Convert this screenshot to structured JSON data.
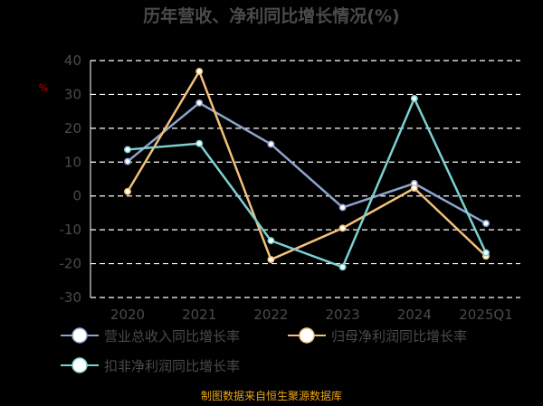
{
  "chart_data": {
    "type": "line",
    "title": "历年营收、净利同比增长情况(%)",
    "ylabel": "%",
    "categories": [
      "2020",
      "2021",
      "2022",
      "2023",
      "2024",
      "2025Q1"
    ],
    "ylim": [
      -30,
      40
    ],
    "yticks": [
      -30,
      -20,
      -10,
      0,
      10,
      20,
      30,
      40
    ],
    "grid": true,
    "legend_position": "bottom",
    "series": [
      {
        "name": "营业总收入同比增长率",
        "color": "#8fa3cf",
        "values": [
          10.2,
          27.5,
          15.3,
          -3.4,
          3.7,
          -8.1
        ]
      },
      {
        "name": "归母净利润同比增长率",
        "color": "#f4c07a",
        "values": [
          1.3,
          36.8,
          -18.8,
          -9.5,
          2.3,
          -17.8
        ]
      },
      {
        "name": "扣非净利润同比增长率",
        "color": "#7cd0d0",
        "values": [
          13.7,
          15.5,
          -13.2,
          -21.0,
          28.8,
          -16.8
        ]
      }
    ]
  },
  "source": "制图数据来自恒生聚源数据库"
}
